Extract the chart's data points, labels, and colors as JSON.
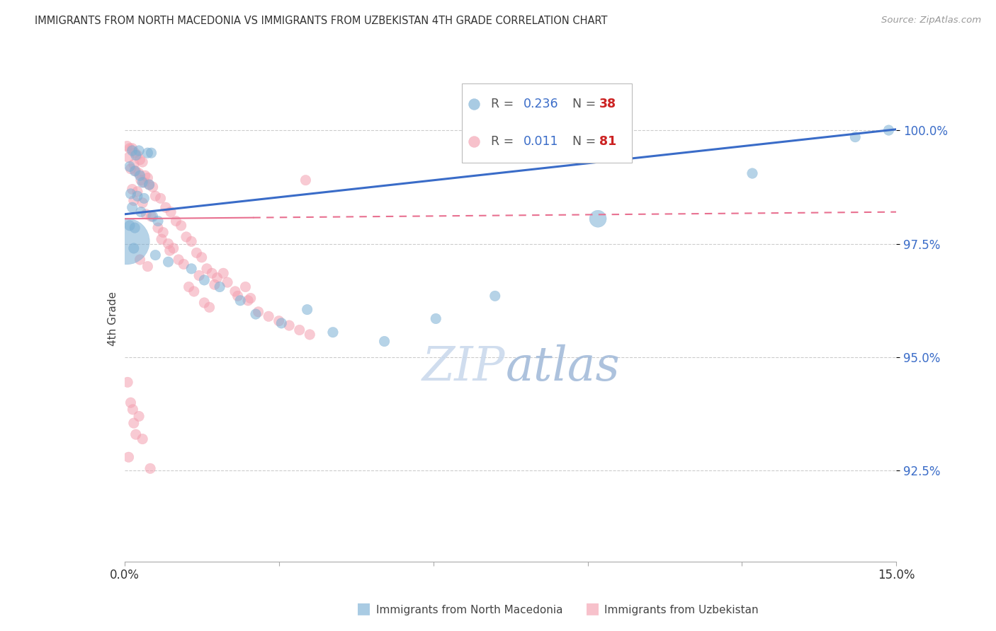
{
  "title": "IMMIGRANTS FROM NORTH MACEDONIA VS IMMIGRANTS FROM UZBEKISTAN 4TH GRADE CORRELATION CHART",
  "source": "Source: ZipAtlas.com",
  "ylabel": "4th Grade",
  "y_ticks": [
    92.5,
    95.0,
    97.5,
    100.0
  ],
  "y_tick_labels": [
    "92.5%",
    "95.0%",
    "97.5%",
    "100.0%"
  ],
  "x_range": [
    0.0,
    15.0
  ],
  "y_range": [
    90.5,
    101.2
  ],
  "legend1_label": "Immigrants from North Macedonia",
  "legend2_label": "Immigrants from Uzbekistan",
  "R1": 0.236,
  "N1": 38,
  "R2": 0.011,
  "N2": 81,
  "blue_color": "#7BAFD4",
  "pink_color": "#F4A0B0",
  "trendline1_color": "#3A6CC8",
  "trendline2_color": "#E87090",
  "watermark_zip": "ZIP",
  "watermark_atlas": "atlas",
  "watermark_color_zip": "#C8D8EC",
  "watermark_color_atlas": "#9FB8D8"
}
